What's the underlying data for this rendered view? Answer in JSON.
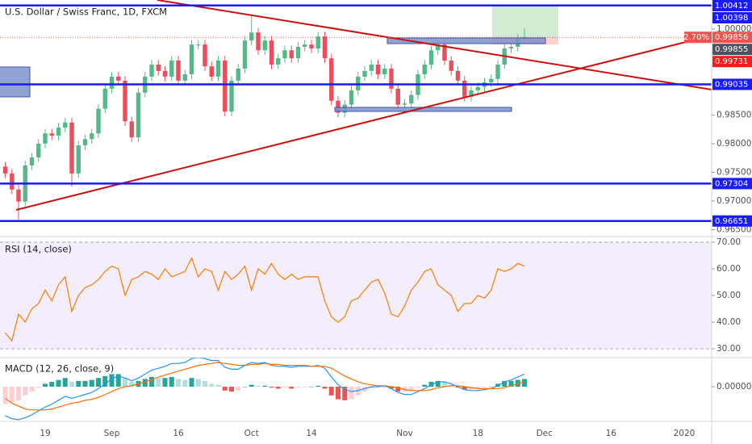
{
  "chart_data": {
    "type": "candlestick",
    "title": "U.S. Dollar / Swiss Franc, 1D, FXCM",
    "categories": [
      null,
      null,
      null,
      null,
      null,
      null,
      "19",
      null,
      null,
      null,
      null,
      null,
      null,
      null,
      null,
      null,
      "Sep",
      null,
      null,
      null,
      null,
      null,
      null,
      null,
      null,
      null,
      "16",
      null,
      null,
      null,
      null,
      null,
      null,
      null,
      null,
      null,
      null,
      "Oct",
      null,
      null,
      null,
      null,
      null,
      null,
      null,
      null,
      "14",
      null,
      null,
      null,
      null,
      null,
      null,
      null,
      null,
      null,
      null,
      null,
      null,
      null,
      "Nov",
      null,
      null,
      null,
      null,
      null,
      null,
      null,
      null,
      null,
      null,
      "18",
      null,
      null,
      null,
      null,
      null,
      null,
      null,
      null,
      null,
      "Dec",
      null,
      null,
      null,
      null,
      null,
      null,
      null,
      null,
      null,
      "16",
      null,
      null,
      null,
      null,
      null,
      null,
      null,
      null,
      null,
      null,
      "2020"
    ],
    "open": [
      0.976,
      0.9748,
      0.972,
      0.9699,
      0.9762,
      0.9776,
      0.98,
      0.9818,
      0.9814,
      0.9828,
      0.9837,
      0.9748,
      0.9797,
      0.9808,
      0.9818,
      0.9861,
      0.9896,
      0.9917,
      0.991,
      0.9839,
      0.9811,
      0.9889,
      0.9917,
      0.9938,
      0.9927,
      0.9917,
      0.9945,
      0.991,
      0.9921,
      0.9973,
      0.9973,
      0.9935,
      0.9917,
      0.9945,
      0.9856,
      0.991,
      0.9931,
      0.998,
      0.9994,
      0.9963,
      0.998,
      0.9938,
      0.9949,
      0.9963,
      0.9949,
      0.9969,
      0.9973,
      0.9966,
      0.9987,
      0.9949,
      0.9875,
      0.9854,
      0.9868,
      0.9893,
      0.9917,
      0.9927,
      0.9938,
      0.9921,
      0.9931,
      0.9896,
      0.9868,
      0.987,
      0.9885,
      0.9921,
      0.9938,
      0.9963,
      0.9973,
      0.9945,
      0.9927,
      0.991,
      0.9882,
      0.9893,
      0.9899,
      0.9907,
      0.9913,
      0.9938,
      0.9966,
      0.9969,
      0.9983,
      null,
      null,
      null,
      null,
      null,
      null,
      null,
      null,
      null,
      null,
      null,
      null,
      null,
      null,
      null,
      null,
      null,
      null,
      null,
      null,
      null,
      null,
      null,
      null
    ],
    "high": [
      0.9768,
      0.9756,
      0.9728,
      0.977,
      0.9784,
      0.9808,
      0.9826,
      0.9826,
      0.9836,
      0.9845,
      0.9845,
      0.9805,
      0.9816,
      0.9826,
      0.9869,
      0.9904,
      0.9925,
      0.9925,
      0.9918,
      0.9847,
      0.9897,
      0.9925,
      0.9946,
      0.9946,
      0.9935,
      0.9953,
      0.9953,
      0.9929,
      0.9981,
      0.9981,
      0.9981,
      0.9943,
      0.9953,
      0.9953,
      0.9918,
      0.9939,
      0.9988,
      1.0025,
      1.0002,
      0.9988,
      0.9988,
      0.9957,
      0.9971,
      0.9971,
      0.9977,
      0.9981,
      0.9981,
      0.9995,
      0.9995,
      0.9957,
      0.9883,
      0.9876,
      0.9901,
      0.9925,
      0.9935,
      0.9946,
      0.9946,
      0.9939,
      0.9939,
      0.9904,
      0.9878,
      0.9893,
      0.9929,
      0.9946,
      0.9971,
      0.9981,
      0.9981,
      0.9953,
      0.9935,
      0.9918,
      0.9901,
      0.9907,
      0.9915,
      0.9921,
      0.9946,
      0.9974,
      0.9977,
      0.9991,
      1.0001,
      null,
      null,
      null,
      null,
      null,
      null,
      null,
      null,
      null,
      null,
      null,
      null,
      null,
      null,
      null,
      null,
      null,
      null,
      null,
      null,
      null,
      null,
      null,
      null
    ],
    "low": [
      0.974,
      0.9712,
      0.9668,
      0.9691,
      0.9754,
      0.9768,
      0.9792,
      0.9806,
      0.9806,
      0.982,
      0.9725,
      0.974,
      0.9789,
      0.98,
      0.981,
      0.9853,
      0.9888,
      0.9902,
      0.9831,
      0.9803,
      0.9803,
      0.9881,
      0.9909,
      0.9919,
      0.9909,
      0.9909,
      0.9902,
      0.9902,
      0.9913,
      0.9965,
      0.9927,
      0.9909,
      0.9909,
      0.9848,
      0.9848,
      0.9902,
      0.9923,
      0.9972,
      0.9955,
      0.9955,
      0.993,
      0.993,
      0.9941,
      0.9941,
      0.9941,
      0.9961,
      0.9958,
      0.9958,
      0.9941,
      0.9867,
      0.9846,
      0.9846,
      0.986,
      0.9885,
      0.9909,
      0.9919,
      0.9913,
      0.9913,
      0.9888,
      0.986,
      0.986,
      0.9862,
      0.9877,
      0.9913,
      0.993,
      0.9955,
      0.9937,
      0.9919,
      0.9902,
      0.9874,
      0.9874,
      0.9885,
      0.9891,
      0.9899,
      0.9905,
      0.993,
      0.9958,
      0.9961,
      0.9975,
      null,
      null,
      null,
      null,
      null,
      null,
      null,
      null,
      null,
      null,
      null,
      null,
      null,
      null,
      null,
      null,
      null,
      null,
      null,
      null,
      null,
      null,
      null,
      null
    ],
    "close": [
      0.9748,
      0.972,
      0.9699,
      0.9762,
      0.9776,
      0.98,
      0.9818,
      0.9814,
      0.9828,
      0.9837,
      0.9748,
      0.9797,
      0.9808,
      0.9818,
      0.9861,
      0.9896,
      0.9917,
      0.991,
      0.9839,
      0.9811,
      0.9889,
      0.9917,
      0.9938,
      0.9927,
      0.9917,
      0.9945,
      0.991,
      0.9921,
      0.9973,
      0.9973,
      0.9935,
      0.9917,
      0.9945,
      0.9856,
      0.991,
      0.9931,
      0.998,
      0.9994,
      0.9963,
      0.998,
      0.9938,
      0.9949,
      0.9963,
      0.9949,
      0.9969,
      0.9973,
      0.9966,
      0.9987,
      0.9949,
      0.9875,
      0.9854,
      0.9868,
      0.9893,
      0.9917,
      0.9927,
      0.9938,
      0.9921,
      0.9931,
      0.9896,
      0.9868,
      0.987,
      0.9885,
      0.9921,
      0.9938,
      0.9963,
      0.9973,
      0.9945,
      0.9927,
      0.991,
      0.9882,
      0.9893,
      0.9899,
      0.9907,
      0.9913,
      0.9938,
      0.9966,
      0.9969,
      0.9983,
      0.9986,
      null,
      null,
      null,
      null,
      null,
      null,
      null,
      null,
      null,
      null,
      null,
      null,
      null,
      null,
      null,
      null,
      null,
      null,
      null,
      null,
      null,
      null,
      null,
      null
    ],
    "up_color": "#53b987",
    "down_color": "#eb4d5c",
    "ylim": [
      0.96394,
      1.00507
    ],
    "yticks": [
      {
        "value": 1,
        "label": "1.00000"
      },
      {
        "value": 0.985,
        "label": "0.98500"
      },
      {
        "value": 0.98,
        "label": "0.98000"
      },
      {
        "value": 0.975,
        "label": "0.97500"
      },
      {
        "value": 0.97,
        "label": "0.97000"
      },
      {
        "value": 0.965,
        "label": "0.96500"
      }
    ],
    "price_tags": [
      {
        "value": 1.00412,
        "color": "#1a1aff",
        "line": "solid"
      },
      {
        "value": 1.00398,
        "color": "#1a1aff"
      },
      {
        "value": 0.99856,
        "color": "#ef5350",
        "line": "dotted",
        "change": "2.70%"
      },
      {
        "value": 0.99855,
        "color": "#4c525e"
      },
      {
        "value": 0.99731,
        "color": "#ff1a1a"
      },
      {
        "value": 0.99035,
        "color": "#1a1aff",
        "line": "solid"
      },
      {
        "value": 0.97304,
        "color": "#1a1aff",
        "line": "solid"
      },
      {
        "value": 0.96651,
        "color": "#1a1aff",
        "line": "solid"
      }
    ],
    "rsi": {
      "title": "RSI (14, close)",
      "color": "#f57c00",
      "band_color": "#9c6fe4",
      "ylim": [
        27,
        72.1
      ],
      "yticks": [
        {
          "value": 70,
          "label": "70.00"
        },
        {
          "value": 60,
          "label": "60.00"
        },
        {
          "value": 50,
          "label": "50.00"
        },
        {
          "value": 40,
          "label": "40.00"
        },
        {
          "value": 30,
          "label": "30.00"
        }
      ],
      "values": [
        36,
        33,
        43,
        40,
        45,
        47,
        52,
        48,
        54,
        57,
        44,
        50,
        53,
        54,
        56,
        59,
        61,
        60,
        50,
        56,
        57,
        59,
        58,
        56,
        60,
        57,
        58,
        59,
        64,
        57,
        60,
        59,
        52,
        59,
        56,
        58,
        61,
        52,
        60,
        58,
        62,
        58,
        56,
        58,
        56,
        57,
        57,
        57,
        48,
        42,
        40,
        42,
        48,
        49,
        52,
        55,
        56,
        51,
        43,
        42,
        46,
        52,
        55,
        59,
        60,
        54,
        52,
        50,
        44,
        47,
        47,
        50,
        49,
        52,
        60,
        59,
        60,
        62,
        61,
        null,
        null,
        null,
        null,
        null,
        null,
        null,
        null,
        null,
        null,
        null,
        null,
        null,
        null,
        null,
        null,
        null,
        null,
        null,
        null,
        null,
        null,
        null,
        null
      ]
    },
    "macd": {
      "title": "MACD (12, 26, close, 9)",
      "macd_color": "#2196f3",
      "signal_color": "#ff6d00",
      "histogram_colors": [
        "#26a69a",
        "#b2dfdb",
        "#ef5350",
        "#ffcdd2"
      ],
      "ylim": [
        -0.00358,
        0.003
      ],
      "yticks": [
        {
          "value": 0,
          "label": "0.00000"
        }
      ],
      "macd": [
        -0.003,
        -0.0033,
        -0.0034,
        -0.0032,
        -0.0029,
        -0.0025,
        -0.0021,
        -0.0018,
        -0.0014,
        -0.001,
        -0.0012,
        -0.001,
        -0.0008,
        -0.0006,
        -0.0002,
        0.0003,
        0.0008,
        0.0011,
        0.0009,
        0.0006,
        0.0009,
        0.0013,
        0.0017,
        0.0019,
        0.0021,
        0.0024,
        0.0024,
        0.0025,
        0.0029,
        0.003,
        0.0029,
        0.0027,
        0.0027,
        0.002,
        0.0018,
        0.0018,
        0.0022,
        0.0025,
        0.0024,
        0.0025,
        0.0022,
        0.0021,
        0.0021,
        0.002,
        0.0021,
        0.0021,
        0.0021,
        0.0022,
        0.0019,
        0.001,
        0.0002,
        -0.0003,
        -0.0005,
        -0.0004,
        -0.0002,
        0,
        0,
        0.0001,
        -0.0002,
        -0.0006,
        -0.0008,
        -0.0008,
        -0.0005,
        -0.0002,
        0.0002,
        0.0005,
        0.0005,
        0.0003,
        0,
        -0.0003,
        -0.0004,
        -0.0004,
        -0.0003,
        -0.0002,
        0.0001,
        0.0005,
        0.0007,
        0.001,
        0.0013,
        null,
        null,
        null,
        null,
        null,
        null,
        null,
        null,
        null,
        null,
        null,
        null,
        null,
        null,
        null,
        null,
        null,
        null,
        null,
        null,
        null,
        null,
        null,
        null
      ],
      "signal": [
        -0.0012,
        -0.0017,
        -0.002,
        -0.0023,
        -0.0024,
        -0.0024,
        -0.0024,
        -0.0023,
        -0.0021,
        -0.0019,
        -0.0017,
        -0.0016,
        -0.0014,
        -0.0013,
        -0.0011,
        -0.0008,
        -0.0005,
        -0.0002,
        0,
        0.0001,
        0.0003,
        0.0005,
        0.0007,
        0.001,
        0.0012,
        0.0014,
        0.0016,
        0.0018,
        0.002,
        0.0022,
        0.0023,
        0.0024,
        0.0025,
        0.0024,
        0.0023,
        0.0022,
        0.0022,
        0.0023,
        0.0023,
        0.0024,
        0.0023,
        0.0023,
        0.0022,
        0.0022,
        0.0022,
        0.0022,
        0.0021,
        0.0021,
        0.0021,
        0.0019,
        0.0015,
        0.0011,
        0.0008,
        0.0005,
        0.0003,
        0.0002,
        0.0001,
        0.0001,
        0,
        -0.0001,
        -0.0003,
        -0.0004,
        -0.0004,
        -0.0004,
        -0.0003,
        -0.0001,
        0,
        0.0001,
        0.0001,
        0,
        -0.0001,
        -0.0002,
        -0.0002,
        -0.0002,
        -0.0002,
        -0.0001,
        0.0001,
        0.0003,
        0.0005,
        null,
        null,
        null,
        null,
        null,
        null,
        null,
        null,
        null,
        null,
        null,
        null,
        null,
        null,
        null,
        null,
        null,
        null,
        null,
        null,
        null,
        null,
        null,
        null
      ],
      "histogram": [
        -0.0018,
        -0.0016,
        -0.0014,
        -0.0009,
        -0.0005,
        -0.0001,
        0.0003,
        0.0005,
        0.0007,
        0.0009,
        0.0005,
        0.0006,
        0.0006,
        0.0007,
        0.0009,
        0.0011,
        0.0013,
        0.0013,
        0.0009,
        0.0005,
        0.0006,
        0.0008,
        0.001,
        0.0009,
        0.0009,
        0.001,
        0.0008,
        0.0007,
        0.0009,
        0.0008,
        0.0006,
        0.0003,
        0.0002,
        -0.0004,
        -0.0005,
        -0.0004,
        0,
        0.0002,
        0.0001,
        0.0001,
        -0.0001,
        -0.0002,
        -0.0001,
        -0.0002,
        -0.0001,
        -0.0001,
        0,
        0.0001,
        -0.0002,
        -0.0009,
        -0.0013,
        -0.0014,
        -0.0013,
        -0.0009,
        -0.0005,
        -0.0002,
        -0.0001,
        0,
        -0.0002,
        -0.0005,
        -0.0005,
        -0.0004,
        -0.0001,
        0.0002,
        0.0005,
        0.0006,
        0.0005,
        0.0002,
        -0.0001,
        -0.0003,
        -0.0003,
        -0.0002,
        -0.0001,
        0,
        0.0003,
        0.0006,
        0.0006,
        0.0007,
        0.0008,
        null,
        null,
        null,
        null,
        null,
        null,
        null,
        null,
        null,
        null,
        null,
        null,
        null,
        null,
        null,
        null,
        null,
        null,
        null,
        null,
        null,
        null,
        null,
        null
      ]
    }
  }
}
